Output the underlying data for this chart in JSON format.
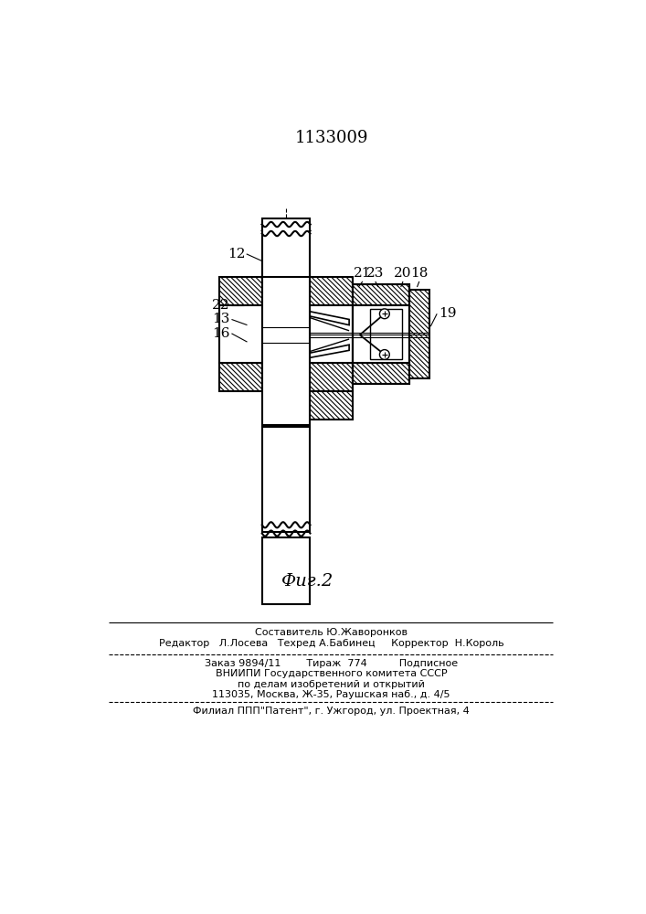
{
  "title": "1133009",
  "fig_label": "Фиг.2",
  "bg_color": "#ffffff",
  "line_color": "#000000",
  "footer_line1": "Составитель Ю.Жаворонков",
  "footer_line2": "Редактор   Л.Лосева   Техред А.Бабинец     Корректор  Н.Король",
  "footer_line3": "Заказ 9894/11        Тираж  774          Подписное",
  "footer_line4": "ВНИИПИ Государственного комитета СССР",
  "footer_line5": "по делам изобретений и открытий",
  "footer_line6": "113035, Москва, Ж-35, Раушская наб., д. 4/5",
  "footer_line7": "Филиал ППП\"Патент\", г. Ужгород, ул. Проектная, 4"
}
